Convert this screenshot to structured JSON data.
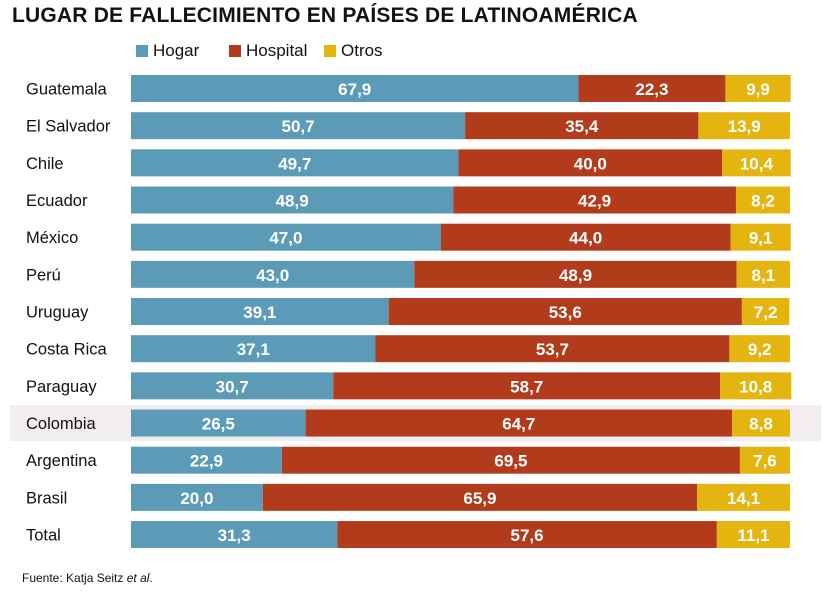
{
  "chart_data": {
    "type": "bar",
    "orientation": "horizontal",
    "stacked": true,
    "title": "LUGAR DE FALLECIMIENTO EN PAÍSES DE LATINOAMÉRICA",
    "categories": [
      "Guatemala",
      "El Salvador",
      "Chile",
      "Ecuador",
      "México",
      "Perú",
      "Uruguay",
      "Costa Rica",
      "Paraguay",
      "Colombia",
      "Argentina",
      "Brasil",
      "Total"
    ],
    "highlighted_category": "Colombia",
    "series": [
      {
        "name": "Hogar",
        "color": "#5b9bb8",
        "values": [
          67.9,
          50.7,
          49.7,
          48.9,
          47.0,
          43.0,
          39.1,
          37.1,
          30.7,
          26.5,
          22.9,
          20.0,
          31.3
        ],
        "labels": [
          "67,9",
          "50,7",
          "49,7",
          "48,9",
          "47,0",
          "43,0",
          "39,1",
          "37,1",
          "30,7",
          "26,5",
          "22,9",
          "20,0",
          "31,3"
        ]
      },
      {
        "name": "Hospital",
        "color": "#b23b1b",
        "values": [
          22.3,
          35.4,
          40.0,
          42.9,
          44.0,
          48.9,
          53.6,
          53.7,
          58.7,
          64.7,
          69.5,
          65.9,
          57.6
        ],
        "labels": [
          "22,3",
          "35,4",
          "40,0",
          "42,9",
          "44,0",
          "48,9",
          "53,6",
          "53,7",
          "58,7",
          "64,7",
          "69,5",
          "65,9",
          "57,6"
        ]
      },
      {
        "name": "Otros",
        "color": "#e4b40f",
        "values": [
          9.9,
          13.9,
          10.4,
          8.2,
          9.1,
          8.1,
          7.2,
          9.2,
          10.8,
          8.8,
          7.6,
          14.1,
          11.1
        ],
        "labels": [
          "9,9",
          "13,9",
          "10,4",
          "8,2",
          "9,1",
          "8,1",
          "7,2",
          "9,2",
          "10,8",
          "8,8",
          "7,6",
          "14,1",
          "11,1"
        ]
      }
    ],
    "xlim": [
      0,
      100
    ],
    "legend_position": "top",
    "grid": false
  },
  "source": {
    "prefix": "Fuente: Katja Seitz ",
    "emphasis": "et al",
    "suffix": "."
  }
}
